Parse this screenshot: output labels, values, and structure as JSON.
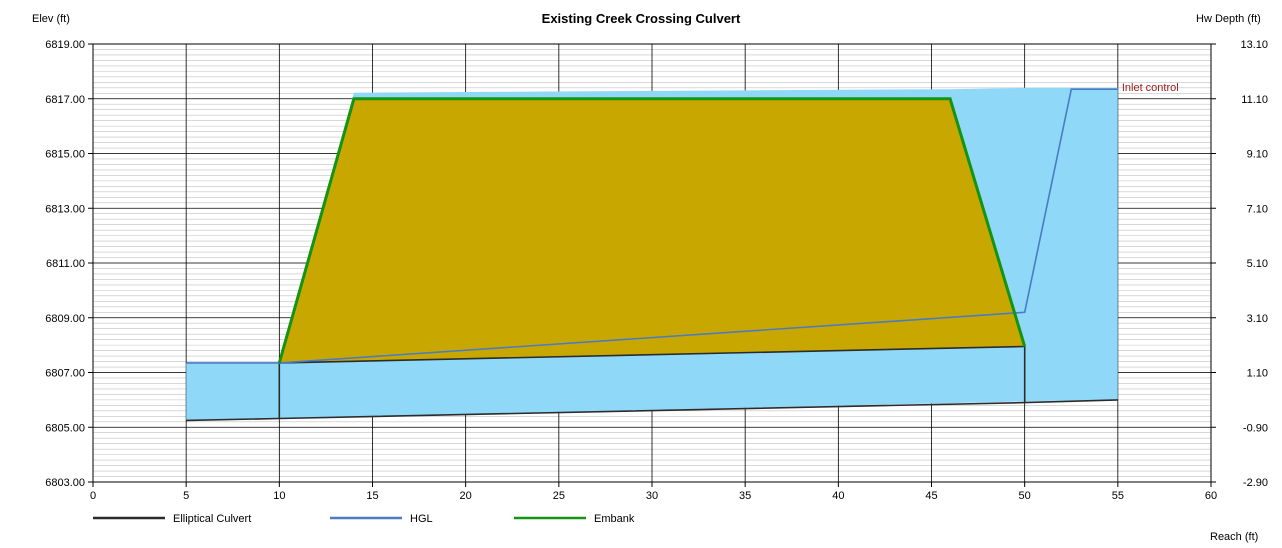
{
  "chart_data": {
    "type": "area",
    "title": "Existing Creek Crossing Culvert",
    "xlabel": "Reach (ft)",
    "ylabel_left": "Elev (ft)",
    "ylabel_right": "Hw Depth (ft)",
    "xlim": [
      0,
      60
    ],
    "ylim": [
      6803,
      6819
    ],
    "y2lim": [
      -2.9,
      13.1
    ],
    "x_ticks": [
      0,
      5,
      10,
      15,
      20,
      25,
      30,
      35,
      40,
      45,
      50,
      55,
      60
    ],
    "x_tick_labels": [
      "0",
      "5",
      "10",
      "15",
      "20",
      "25",
      "30",
      "35",
      "40",
      "45",
      "50",
      "55",
      "60"
    ],
    "y_ticks": [
      6803,
      6805,
      6807,
      6809,
      6811,
      6813,
      6815,
      6817,
      6819
    ],
    "y_tick_labels": [
      "6803.00",
      "6805.00",
      "6807.00",
      "6809.00",
      "6811.00",
      "6813.00",
      "6815.00",
      "6817.00",
      "6819.00"
    ],
    "y2_ticks": [
      -2.9,
      -0.9,
      1.1,
      3.1,
      5.1,
      7.1,
      9.1,
      11.1,
      13.1
    ],
    "y2_tick_labels": [
      "-2.90",
      "-0.90",
      "1.10",
      "3.10",
      "5.10",
      "7.10",
      "9.10",
      "11.10",
      "13.10"
    ],
    "minor_y_step": 0.2,
    "grid": true,
    "legend_position": "bottom",
    "annotation": "Inlet control",
    "colors": {
      "water": "#8fd8f8",
      "embankment_fill": "#c8a800",
      "embankment_line": "#139413",
      "culvert_line": "#2b2b2b",
      "hgl_line": "#4a7bc4",
      "annotation": "#9b1c1c",
      "grid_major": "#000000",
      "grid_minor": "#c0c0c0"
    },
    "water_polygon": {
      "x": [
        5,
        10,
        10,
        14,
        46,
        50,
        50,
        55,
        55,
        5
      ],
      "y": [
        6807.35,
        6807.35,
        6807.35,
        6817.22,
        6817.35,
        6817.4,
        6817.4,
        6817.4,
        6806.02,
        6805.25
      ]
    },
    "embankment_polygon": {
      "x": [
        10,
        14,
        46,
        50,
        10
      ],
      "y": [
        6807.35,
        6817.0,
        6817.0,
        6807.95,
        6807.35
      ]
    },
    "series": [
      {
        "name": "Elliptical Culvert",
        "paths": [
          {
            "x": [
              5,
              10,
              50,
              55
            ],
            "y": [
              6805.25,
              6805.32,
              6805.9,
              6806.0
            ]
          },
          {
            "x": [
              10,
              50
            ],
            "y": [
              6807.35,
              6807.95
            ]
          },
          {
            "x": [
              10,
              10
            ],
            "y": [
              6805.32,
              6807.35
            ]
          },
          {
            "x": [
              50,
              50
            ],
            "y": [
              6805.9,
              6807.95
            ]
          }
        ]
      },
      {
        "name": "HGL",
        "paths": [
          {
            "x": [
              5,
              10,
              50,
              52.5,
              55
            ],
            "y": [
              6807.35,
              6807.35,
              6809.2,
              6817.35,
              6817.35
            ]
          }
        ]
      },
      {
        "name": "Embank",
        "paths": [
          {
            "x": [
              10,
              14,
              46,
              50
            ],
            "y": [
              6807.35,
              6817.0,
              6817.0,
              6807.95
            ]
          }
        ]
      }
    ],
    "legend": [
      {
        "name": "Elliptical Culvert",
        "color": "#2b2b2b"
      },
      {
        "name": "HGL",
        "color": "#4a7bc4"
      },
      {
        "name": "Embank",
        "color": "#139413"
      }
    ]
  }
}
